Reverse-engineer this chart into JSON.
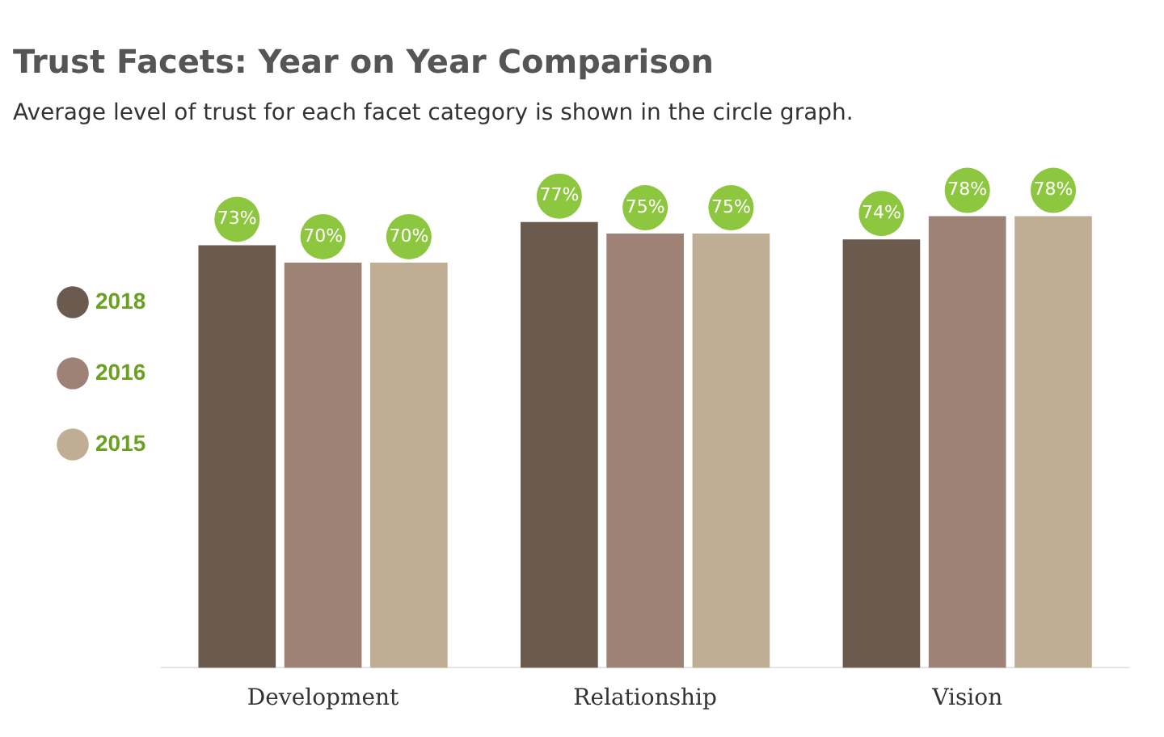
{
  "chart_data": {
    "type": "bar",
    "title": "Trust Facets: Year on Year Comparison",
    "subtitle": "Average level of trust for each facet category is shown in the circle graph.",
    "categories": [
      "Development",
      "Relationship",
      "Vision"
    ],
    "series": [
      {
        "name": "2018",
        "color": "#6b5a4e",
        "values": [
          73,
          77,
          74
        ],
        "value_labels": [
          "73%",
          "77%",
          "74%"
        ]
      },
      {
        "name": "2016",
        "color": "#9e8276",
        "values": [
          70,
          75,
          78
        ],
        "value_labels": [
          "70%",
          "75%",
          "78%"
        ]
      },
      {
        "name": "2015",
        "color": "#bfae94",
        "values": [
          70,
          75,
          78
        ],
        "value_labels": [
          "70%",
          "75%",
          "78%"
        ]
      }
    ],
    "legend": "left",
    "tick_labels": "x",
    "grid": false
  }
}
